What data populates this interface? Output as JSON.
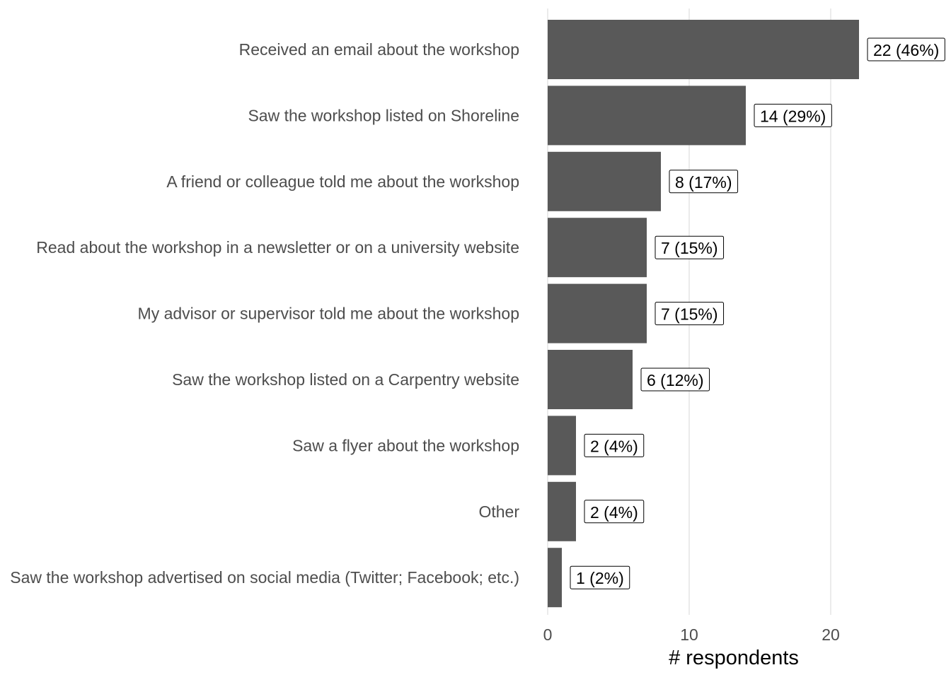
{
  "chart_data": {
    "type": "bar",
    "orientation": "horizontal",
    "categories": [
      "Received an email about the workshop",
      "Saw the workshop listed on Shoreline",
      "A friend or colleague told me about the workshop",
      "Read about the workshop in a newsletter or on a university website",
      "My advisor or supervisor told me about the workshop",
      "Saw the workshop listed on a Carpentry website",
      "Saw a flyer about the workshop",
      "Other",
      "Saw the workshop advertised on social media (Twitter; Facebook; etc.)"
    ],
    "values": [
      22,
      14,
      8,
      7,
      7,
      6,
      2,
      2,
      1
    ],
    "data_labels": [
      "22 (46%)",
      "14 (29%)",
      "8 (17%)",
      "7 (15%)",
      "7 (15%)",
      "6 (12%)",
      "2 (4%)",
      "2 (4%)",
      "1 (2%)"
    ],
    "xlabel": "# respondents",
    "ylabel": "",
    "title": "",
    "xlim": [
      0,
      25
    ],
    "x_ticks": [
      0,
      10,
      20
    ],
    "grid": "vertical major gridlines",
    "legend": "none",
    "colors": {
      "bar": "#595959",
      "grid": "#ebebeb",
      "category_text": "#4d4d4d",
      "label_border": "#000000",
      "label_fill": "#ffffff"
    }
  }
}
